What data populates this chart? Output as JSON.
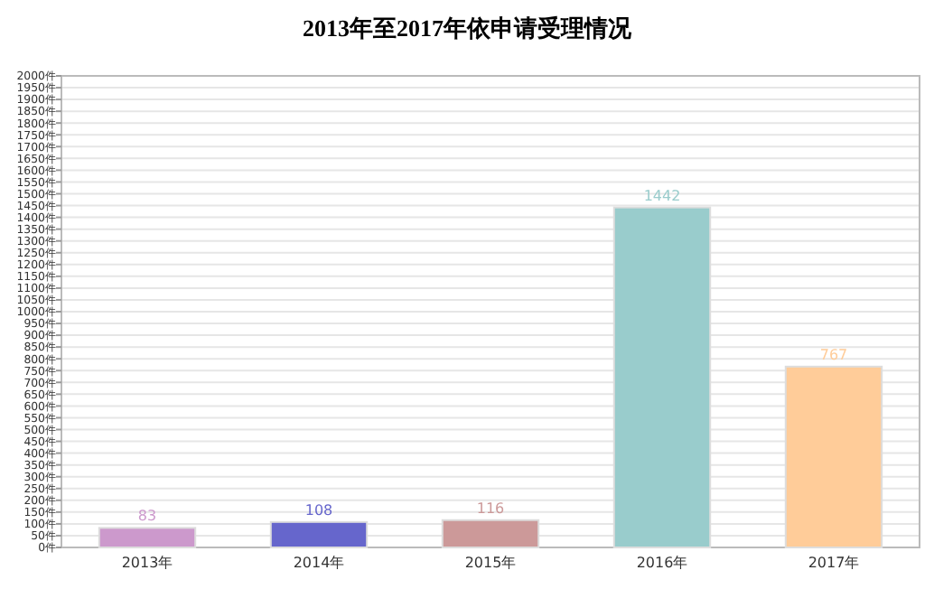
{
  "chart_data": {
    "type": "bar",
    "title": "2013年至2017年依申请受理情况",
    "categories": [
      "2013年",
      "2014年",
      "2015年",
      "2016年",
      "2017年"
    ],
    "values": [
      83,
      108,
      116,
      1442,
      767
    ],
    "colors": [
      "#cc99cc",
      "#6666cc",
      "#cc9999",
      "#99cccc",
      "#ffcc99"
    ],
    "data_labels": true,
    "grid": "y",
    "ylim": [
      0,
      2000
    ],
    "yticks": [
      {
        "value": 0,
        "label": "0件"
      },
      {
        "value": 50,
        "label": "50件"
      },
      {
        "value": 100,
        "label": "100件"
      },
      {
        "value": 150,
        "label": "150件"
      },
      {
        "value": 200,
        "label": "200件"
      },
      {
        "value": 250,
        "label": "250件"
      },
      {
        "value": 300,
        "label": "300件"
      },
      {
        "value": 350,
        "label": "350件"
      },
      {
        "value": 400,
        "label": "400件"
      },
      {
        "value": 450,
        "label": "450件"
      },
      {
        "value": 500,
        "label": "500件"
      },
      {
        "value": 550,
        "label": "550件"
      },
      {
        "value": 600,
        "label": "600件"
      },
      {
        "value": 650,
        "label": "650件"
      },
      {
        "value": 700,
        "label": "700件"
      },
      {
        "value": 750,
        "label": "750件"
      },
      {
        "value": 800,
        "label": "800件"
      },
      {
        "value": 850,
        "label": "850件"
      },
      {
        "value": 900,
        "label": "900件"
      },
      {
        "value": 950,
        "label": "950件"
      },
      {
        "value": 1000,
        "label": "1000件"
      },
      {
        "value": 1050,
        "label": "1050件"
      },
      {
        "value": 1100,
        "label": "1100件"
      },
      {
        "value": 1150,
        "label": "1150件"
      },
      {
        "value": 1200,
        "label": "1200件"
      },
      {
        "value": 1250,
        "label": "1250件"
      },
      {
        "value": 1300,
        "label": "1300件"
      },
      {
        "value": 1350,
        "label": "1350件"
      },
      {
        "value": 1400,
        "label": "1400件"
      },
      {
        "value": 1450,
        "label": "1450件"
      },
      {
        "value": 1500,
        "label": "1500件"
      },
      {
        "value": 1550,
        "label": "1550件"
      },
      {
        "value": 1600,
        "label": "1600件"
      },
      {
        "value": 1650,
        "label": "1650件"
      },
      {
        "value": 1700,
        "label": "1700件"
      },
      {
        "value": 1750,
        "label": "1750件"
      },
      {
        "value": 1800,
        "label": "1800件"
      },
      {
        "value": 1850,
        "label": "1850件"
      },
      {
        "value": 1900,
        "label": "1900件"
      },
      {
        "value": 1950,
        "label": "1950件"
      },
      {
        "value": 2000,
        "label": "2000件"
      }
    ]
  }
}
